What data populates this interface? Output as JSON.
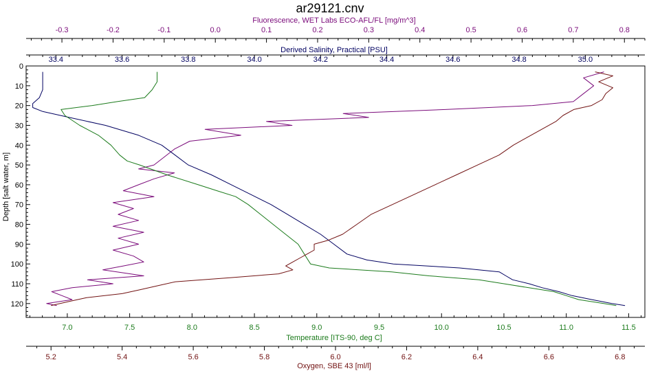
{
  "chart_data": {
    "type": "line",
    "title": "ar29121.cnv",
    "colors": {
      "fluorescence": "#7a0a7a",
      "salinity": "#000060",
      "temperature": "#1a7a1a",
      "oxygen": "#701010"
    },
    "axes": {
      "fluorescence": {
        "label": "Fluorescence, WET Labs ECO-AFL/FL [mg/m^3]",
        "range": [
          -0.37,
          0.84
        ],
        "ticks": [
          "-0.3",
          "-0.2",
          "-0.1",
          "0.0",
          "0.1",
          "0.2",
          "0.3",
          "0.4",
          "0.5",
          "0.6",
          "0.7",
          "0.8"
        ]
      },
      "salinity": {
        "label": "Derived Salinity, Practical [PSU]",
        "range": [
          33.31,
          35.18
        ],
        "ticks": [
          "33.4",
          "33.6",
          "33.8",
          "34.0",
          "34.2",
          "34.4",
          "34.6",
          "34.8",
          "35.0"
        ]
      },
      "depth": {
        "label": "Depth [salt water, m]",
        "range": [
          0,
          127
        ],
        "ticks": [
          "0",
          "10",
          "20",
          "30",
          "40",
          "50",
          "60",
          "70",
          "80",
          "90",
          "100",
          "110",
          "120"
        ]
      },
      "temperature": {
        "label": "Temperature [ITS-90, deg C]",
        "range": [
          6.67,
          11.63
        ],
        "ticks": [
          "7.0",
          "7.5",
          "8.0",
          "8.5",
          "9.0",
          "9.5",
          "10.0",
          "10.5",
          "11.0",
          "11.5"
        ]
      },
      "oxygen": {
        "label": "Oxygen, SBE 43 [ml/l]",
        "range": [
          5.13,
          6.87
        ],
        "ticks": [
          "5.2",
          "5.4",
          "5.6",
          "5.8",
          "6.0",
          "6.2",
          "6.4",
          "6.6",
          "6.8"
        ]
      }
    },
    "series": [
      {
        "axis": "fluorescence",
        "depth": [
          3,
          6,
          10,
          14,
          18,
          20,
          22,
          24,
          26,
          28,
          30,
          32,
          35,
          38,
          42,
          46,
          50,
          52,
          54,
          57,
          60,
          63,
          66,
          69,
          72,
          75,
          78,
          81,
          84,
          87,
          90,
          93,
          96,
          99,
          101,
          103,
          106,
          108,
          110,
          112,
          114,
          116,
          118,
          120,
          121
        ],
        "values": [
          0.76,
          0.72,
          0.74,
          0.72,
          0.7,
          0.62,
          0.45,
          0.25,
          0.3,
          0.1,
          0.15,
          -0.02,
          0.05,
          -0.05,
          -0.08,
          -0.1,
          -0.12,
          -0.15,
          -0.08,
          -0.12,
          -0.15,
          -0.18,
          -0.12,
          -0.2,
          -0.16,
          -0.19,
          -0.15,
          -0.2,
          -0.14,
          -0.19,
          -0.15,
          -0.2,
          -0.16,
          -0.14,
          -0.18,
          -0.22,
          -0.14,
          -0.25,
          -0.2,
          -0.28,
          -0.32,
          -0.3,
          -0.28,
          -0.33,
          -0.31
        ]
      },
      {
        "axis": "salinity",
        "depth": [
          3,
          8,
          12,
          16,
          19,
          21,
          23,
          26,
          30,
          35,
          40,
          45,
          50,
          55,
          60,
          65,
          70,
          75,
          80,
          85,
          90,
          95,
          98,
          100,
          102,
          104,
          106,
          108,
          110,
          112,
          114,
          116,
          118,
          120,
          121
        ],
        "values": [
          33.36,
          33.36,
          33.36,
          33.35,
          33.33,
          33.33,
          33.36,
          33.44,
          33.55,
          33.65,
          33.72,
          33.76,
          33.8,
          33.87,
          33.93,
          33.99,
          34.05,
          34.1,
          34.15,
          34.2,
          34.24,
          34.28,
          34.34,
          34.42,
          34.62,
          34.74,
          34.76,
          34.78,
          34.83,
          34.87,
          34.92,
          34.96,
          35.02,
          35.08,
          35.12
        ]
      },
      {
        "axis": "temperature",
        "depth": [
          3,
          8,
          12,
          16,
          18,
          20,
          22,
          25,
          30,
          35,
          40,
          45,
          48,
          50,
          55,
          60,
          63,
          66,
          70,
          75,
          80,
          85,
          90,
          95,
          100,
          102,
          104,
          106,
          108,
          110,
          112,
          114,
          116,
          118,
          120,
          121
        ],
        "values": [
          7.72,
          7.72,
          7.68,
          7.62,
          7.4,
          7.2,
          6.95,
          6.98,
          7.1,
          7.25,
          7.35,
          7.42,
          7.48,
          7.58,
          7.8,
          8.05,
          8.2,
          8.35,
          8.45,
          8.55,
          8.65,
          8.75,
          8.85,
          8.9,
          8.95,
          9.1,
          9.6,
          9.9,
          10.3,
          10.5,
          10.7,
          10.9,
          11.0,
          11.1,
          11.3,
          11.4
        ]
      },
      {
        "axis": "oxygen",
        "depth": [
          3,
          5,
          8,
          11,
          14,
          17,
          20,
          22,
          25,
          28,
          32,
          36,
          40,
          45,
          50,
          55,
          60,
          65,
          70,
          75,
          80,
          85,
          88,
          90,
          93,
          95,
          97,
          99,
          101,
          103,
          105,
          107,
          109,
          111,
          113,
          115,
          117,
          119,
          121
        ],
        "values": [
          6.73,
          6.78,
          6.74,
          6.78,
          6.76,
          6.75,
          6.72,
          6.67,
          6.64,
          6.62,
          6.58,
          6.54,
          6.5,
          6.46,
          6.4,
          6.34,
          6.28,
          6.22,
          6.16,
          6.1,
          6.06,
          6.02,
          5.98,
          5.94,
          5.94,
          5.92,
          5.9,
          5.88,
          5.86,
          5.88,
          5.84,
          5.7,
          5.55,
          5.5,
          5.45,
          5.4,
          5.3,
          5.25,
          5.2
        ]
      }
    ]
  }
}
